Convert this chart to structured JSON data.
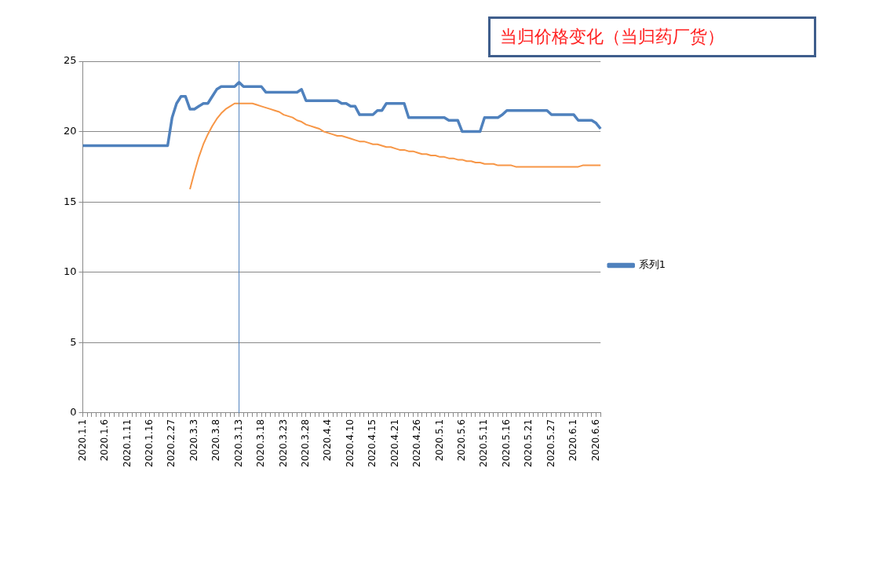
{
  "chart_data": {
    "type": "line",
    "title": "当归价格变化（当归药厂货）",
    "categories": [
      "2020.1.1",
      null,
      null,
      null,
      null,
      "2020.1.6",
      null,
      null,
      null,
      null,
      "2020.1.11",
      null,
      null,
      null,
      null,
      "2020.1.16",
      null,
      null,
      null,
      null,
      "2020.2.27",
      null,
      null,
      null,
      null,
      "2020.3.3",
      null,
      null,
      null,
      null,
      "2020.3.8",
      null,
      null,
      null,
      null,
      "2020.3.13",
      null,
      null,
      null,
      null,
      "2020.3.18",
      null,
      null,
      null,
      null,
      "2020.3.23",
      null,
      null,
      null,
      null,
      "2020.3.28",
      null,
      null,
      null,
      null,
      "2020.4.4",
      null,
      null,
      null,
      null,
      "2020.4.10",
      null,
      null,
      null,
      null,
      "2020.4.15",
      null,
      null,
      null,
      null,
      "2020.4.21",
      null,
      null,
      null,
      null,
      "2020.4.26",
      null,
      null,
      null,
      null,
      "2020.5.1",
      null,
      null,
      null,
      null,
      "2020.5.6",
      null,
      null,
      null,
      null,
      "2020.5.11",
      null,
      null,
      null,
      null,
      "2020.5.16",
      null,
      null,
      null,
      null,
      "2020.5.21",
      null,
      null,
      null,
      null,
      "2020.5.27",
      null,
      null,
      null,
      null,
      "2020.6.1",
      null,
      null,
      null,
      null,
      "2020.6.6",
      null
    ],
    "series": [
      {
        "name": "系列1",
        "color": "#4f81bd",
        "values": [
          19,
          19,
          19,
          19,
          19,
          19,
          19,
          19,
          19,
          19,
          19,
          19,
          19,
          19,
          19,
          19,
          19,
          19,
          19,
          19,
          21,
          22,
          22.5,
          22.5,
          21.6,
          21.6,
          21.8,
          22,
          22,
          22.5,
          23,
          23.2,
          23.2,
          23.2,
          23.2,
          23.5,
          23.2,
          23.2,
          23.2,
          23.2,
          23.2,
          22.8,
          22.8,
          22.8,
          22.8,
          22.8,
          22.8,
          22.8,
          22.8,
          23,
          22.2,
          22.2,
          22.2,
          22.2,
          22.2,
          22.2,
          22.2,
          22.2,
          22,
          22,
          21.8,
          21.8,
          21.2,
          21.2,
          21.2,
          21.2,
          21.5,
          21.5,
          22,
          22,
          22,
          22,
          22,
          21,
          21,
          21,
          21,
          21,
          21,
          21,
          21,
          21,
          20.8,
          20.8,
          20.8,
          20,
          20,
          20,
          20,
          20,
          21,
          21,
          21,
          21,
          21.2,
          21.5,
          21.5,
          21.5,
          21.5,
          21.5,
          21.5,
          21.5,
          21.5,
          21.5,
          21.5,
          21.2,
          21.2,
          21.2,
          21.2,
          21.2,
          21.2,
          20.8,
          20.8,
          20.8,
          20.8,
          20.6,
          20.2
        ]
      },
      {
        "color": "#f79646",
        "values": [
          null,
          null,
          null,
          null,
          null,
          null,
          null,
          null,
          null,
          null,
          null,
          null,
          null,
          null,
          null,
          null,
          null,
          null,
          null,
          null,
          null,
          null,
          null,
          null,
          15.9,
          17.1,
          18.2,
          19.1,
          19.8,
          20.4,
          20.9,
          21.3,
          21.6,
          21.8,
          22.0,
          22.0,
          22.0,
          22.0,
          22.0,
          21.9,
          21.8,
          21.7,
          21.6,
          21.5,
          21.4,
          21.2,
          21.1,
          21.0,
          20.8,
          20.7,
          20.5,
          20.4,
          20.3,
          20.2,
          20.0,
          19.9,
          19.8,
          19.7,
          19.7,
          19.6,
          19.5,
          19.4,
          19.3,
          19.3,
          19.2,
          19.1,
          19.1,
          19.0,
          18.9,
          18.9,
          18.8,
          18.7,
          18.7,
          18.6,
          18.6,
          18.5,
          18.4,
          18.4,
          18.3,
          18.3,
          18.2,
          18.2,
          18.1,
          18.1,
          18.0,
          18.0,
          17.9,
          17.9,
          17.8,
          17.8,
          17.7,
          17.7,
          17.7,
          17.6,
          17.6,
          17.6,
          17.6,
          17.5,
          17.5,
          17.5,
          17.5,
          17.5,
          17.5,
          17.5,
          17.5,
          17.5,
          17.5,
          17.5,
          17.5,
          17.5,
          17.5,
          17.5,
          17.6,
          17.6,
          17.6,
          17.6,
          17.6
        ]
      }
    ],
    "ylim": [
      0,
      25
    ],
    "yticks": [
      0,
      5,
      10,
      15,
      20,
      25
    ],
    "grid": "y",
    "legend": "right",
    "marker": "none",
    "line_style": "solid",
    "ref_lines": [
      {
        "axis": "x",
        "value": "2020.3.13",
        "color": "#4f81bd"
      }
    ]
  }
}
